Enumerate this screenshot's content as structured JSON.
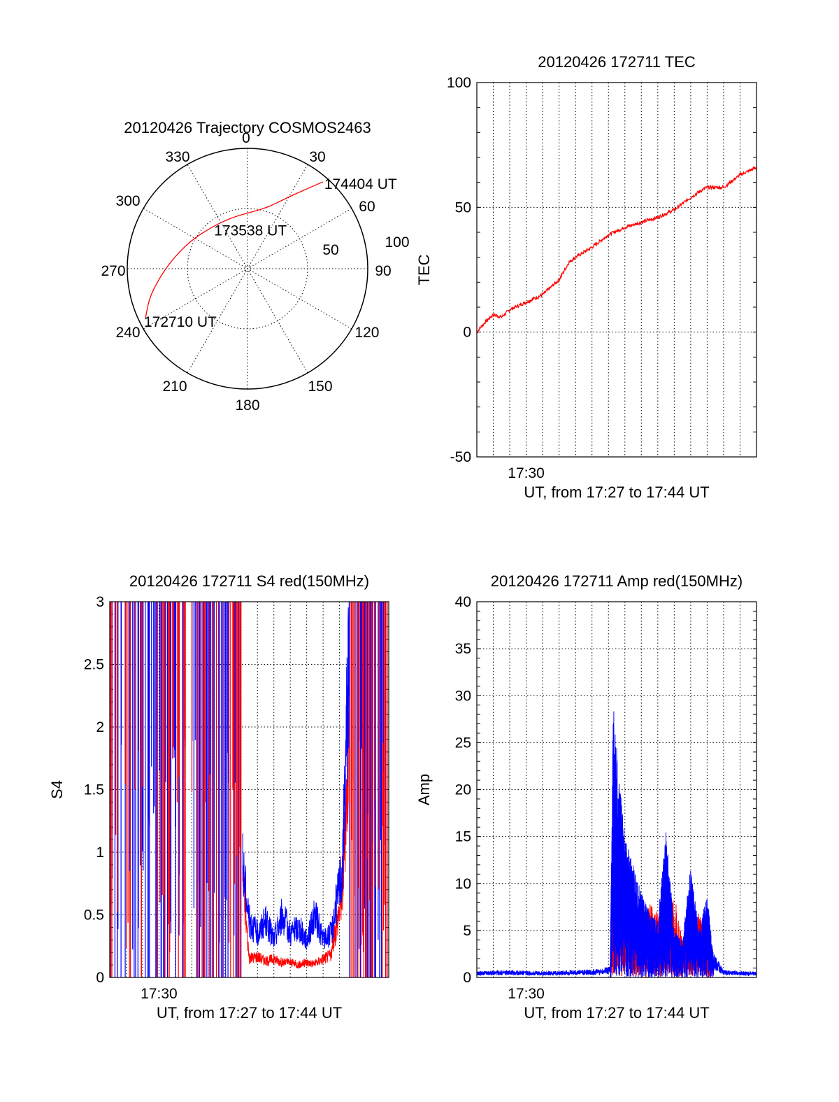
{
  "chart_data": [
    {
      "id": "trajectory",
      "type": "scatter",
      "projection": "polar",
      "title": "20120426 Trajectory COSMOS2463",
      "azimuth_labels": [
        "0",
        "30",
        "60",
        "90",
        "120",
        "150",
        "180",
        "210",
        "240",
        "270",
        "300",
        "330"
      ],
      "radius_labels": [
        "100",
        "50"
      ],
      "grid": true,
      "line_color": "#ff0000",
      "annotations": [
        {
          "text": "174404 UT",
          "az": 41,
          "elevation": 4
        },
        {
          "text": "173538 UT",
          "az": 10,
          "elevation": 53
        },
        {
          "text": "172710 UT",
          "az": 244,
          "elevation": 5
        }
      ],
      "series": [
        {
          "points": [
            [
              244,
              5
            ],
            [
              253,
              13
            ],
            [
              262,
              22
            ],
            [
              275,
              32
            ],
            [
              295,
              42
            ],
            [
              320,
              49
            ],
            [
              343,
              50
            ],
            [
              2,
              48
            ],
            [
              18,
              42
            ],
            [
              30,
              28
            ],
            [
              36,
              17
            ],
            [
              41,
              4
            ]
          ]
        }
      ]
    },
    {
      "id": "tec",
      "type": "line",
      "title": "20120426 172711 TEC",
      "ylabel": "TEC",
      "xlabel": "UT, from 17:27 to 17:44 UT",
      "x_tick_labels": [
        "17:30"
      ],
      "x_tick_values": [
        3.0
      ],
      "xlim": [
        0,
        17
      ],
      "yticks": [
        "-50",
        "0",
        "50",
        "100"
      ],
      "ylim": [
        -50,
        100
      ],
      "grid": true,
      "line_color": "#ff0000",
      "series": [
        {
          "x": [
            0,
            0.5,
            1,
            1.5,
            2,
            3,
            4,
            5,
            5.6,
            6,
            7,
            8,
            9,
            10,
            11,
            12,
            13,
            13.7,
            14,
            15,
            16,
            17
          ],
          "values": [
            0,
            4,
            7,
            6,
            9,
            12,
            15,
            21,
            28,
            30,
            34,
            39,
            42,
            44,
            46,
            49,
            54,
            57,
            58,
            58,
            63,
            66
          ]
        }
      ]
    },
    {
      "id": "s4",
      "type": "line",
      "title": "20120426 172711 S4 red(150MHz)",
      "ylabel": "S4",
      "xlabel": "UT, from 17:27 to 17:44 UT",
      "x_tick_labels": [
        "17:30"
      ],
      "x_tick_values": [
        3.0
      ],
      "xlim": [
        0,
        17
      ],
      "yticks": [
        "0",
        "0.5",
        "1",
        "1.5",
        "2",
        "2.5",
        "3"
      ],
      "ylim": [
        0,
        3
      ],
      "grid": true,
      "series": [
        {
          "color": "#ff0000",
          "x": [
            8.1,
            8.5,
            9,
            9.5,
            10,
            10.5,
            11,
            11.5,
            12,
            12.5,
            13,
            13.5,
            14.2,
            14.6
          ],
          "values": [
            0.8,
            0.15,
            0.17,
            0.13,
            0.15,
            0.12,
            0.12,
            0.1,
            0.12,
            0.11,
            0.15,
            0.18,
            0.7,
            2.0
          ]
        },
        {
          "color": "#0000ff",
          "x": [
            8.1,
            8.5,
            9,
            9.5,
            10,
            10.5,
            11,
            11.5,
            12,
            12.5,
            13,
            13.5,
            14.2,
            14.6
          ],
          "values": [
            0.9,
            0.45,
            0.35,
            0.45,
            0.3,
            0.5,
            0.35,
            0.4,
            0.3,
            0.5,
            0.3,
            0.35,
            0.9,
            2.8
          ]
        }
      ]
    },
    {
      "id": "amp",
      "type": "line",
      "title": "20120426 172711 Amp red(150MHz)",
      "ylabel": "Amp",
      "xlabel": "UT, from 17:27 to 17:44 UT",
      "x_tick_labels": [
        "17:30"
      ],
      "x_tick_values": [
        3.0
      ],
      "xlim": [
        0,
        17
      ],
      "yticks": [
        "0",
        "5",
        "10",
        "15",
        "20",
        "25",
        "30",
        "35",
        "40"
      ],
      "ylim": [
        0,
        40
      ],
      "grid": true,
      "series": [
        {
          "color": "#0000ff",
          "x": [
            0,
            2,
            4,
            6,
            7.5,
            8.1,
            8.3,
            8.6,
            9,
            9.5,
            10,
            10.5,
            11,
            11.5,
            12,
            12.5,
            13,
            13.5,
            14,
            14.4,
            15,
            16,
            17
          ],
          "values": [
            0.5,
            0.6,
            0.5,
            0.6,
            0.7,
            1,
            30,
            22,
            15,
            12,
            9,
            7,
            6,
            16,
            5,
            4,
            12,
            5,
            9,
            2,
            0.6,
            0.5,
            0.5
          ]
        },
        {
          "color": "#ff0000",
          "x": [
            8.1,
            8.3,
            8.6,
            9,
            9.5,
            10,
            10.5,
            11,
            11.5,
            12,
            12.5,
            13,
            13.5,
            14,
            14.4
          ],
          "values": [
            1,
            9,
            7,
            10,
            8,
            6,
            8,
            7,
            5,
            9,
            4,
            5,
            7,
            4,
            1
          ]
        }
      ]
    }
  ]
}
